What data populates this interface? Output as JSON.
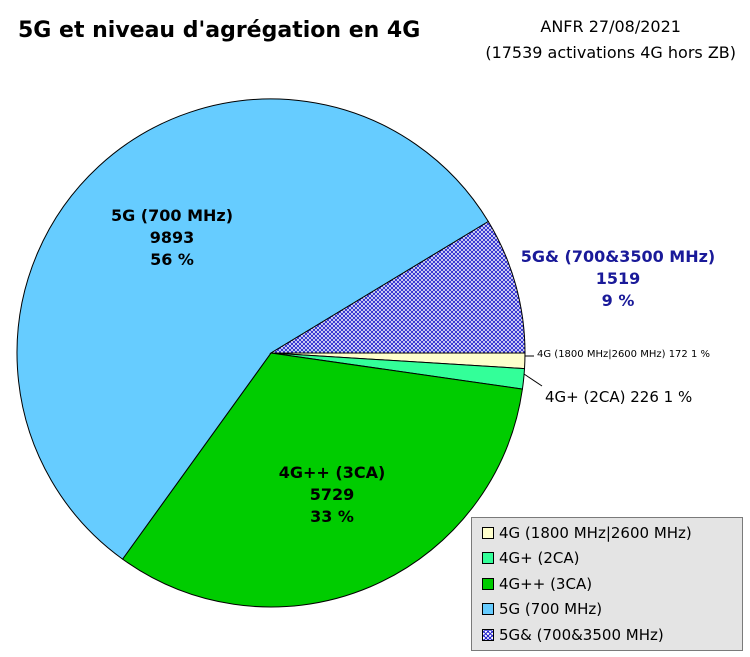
{
  "chart_data": {
    "type": "pie",
    "title": "5G et niveau d'agrégation en 4G",
    "source_line1": "ANFR 27/08/2021",
    "source_line2": "(17539 activations 4G hors ZB)",
    "slices": [
      {
        "label": "4G (1800 MHz|2600 MHz)",
        "value": 172,
        "percent": "1 %",
        "color": "#ffffcc",
        "outside_text": "4G (1800 MHz|2600 MHz) 172 1 %"
      },
      {
        "label": "4G+ (2CA)",
        "value": 226,
        "percent": "1 %",
        "color": "#33ff99",
        "outside_text": "4G+ (2CA) 226 1 %"
      },
      {
        "label": "4G++ (3CA)",
        "value": 5729,
        "percent": "33 %",
        "color": "#00cc00",
        "inside_label": "4G++ (3CA)"
      },
      {
        "label": "5G (700 MHz)",
        "value": 9893,
        "percent": "56 %",
        "color": "#66ccff",
        "inside_label": "5G (700 MHz)"
      },
      {
        "label": "5G& (700&3500 MHz)",
        "value": 1519,
        "percent": "9 %",
        "color": "#3333cc",
        "pattern": "crosshatch",
        "outside_label": "5G& (700&3500 MHz)"
      }
    ],
    "legend": [
      {
        "label": "4G (1800 MHz|2600 MHz)",
        "color": "#ffffcc"
      },
      {
        "label": "4G+ (2CA)",
        "color": "#33ff99"
      },
      {
        "label": "4G++ (3CA)",
        "color": "#00cc00"
      },
      {
        "label": "5G (700 MHz)",
        "color": "#66ccff"
      },
      {
        "label": "5G& (700&3500 MHz)",
        "color": "#3333cc",
        "pattern": "crosshatch"
      }
    ],
    "legend_position": "bottom-right",
    "start_angle_note": "first slice begins at 3 o'clock, slices proceed clockwise"
  }
}
